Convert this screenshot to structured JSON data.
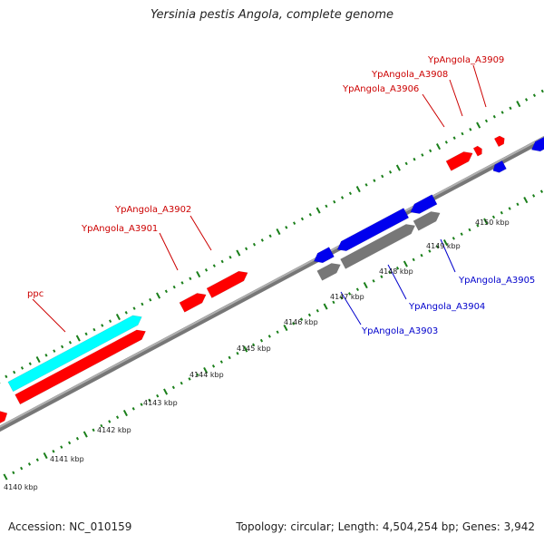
{
  "title": "Yersinia pestis Angola, complete genome",
  "footer": {
    "accession": "Accession: NC_010159",
    "stats": "Topology: circular; Length: 4,504,254 bp; Genes: 3,942"
  },
  "colors": {
    "plus_strand": "#ff0000",
    "minus_strand": "#0000ee",
    "rna": "#00ffff",
    "other": "#777777",
    "backbone": "#888888",
    "ticks": "#1a7f1a"
  },
  "tick_labels": [
    "4140 kbp",
    "4141 kbp",
    "4142 kbp",
    "4143 kbp",
    "4144 kbp",
    "4145 kbp",
    "4146 kbp",
    "4147 kbp",
    "4148 kbp",
    "4149 kbp",
    "4150 kbp"
  ],
  "gene_labels": [
    {
      "text": "ppc",
      "color": "#cc0000"
    },
    {
      "text": "YpAngola_A3901",
      "color": "#cc0000"
    },
    {
      "text": "YpAngola_A3902",
      "color": "#cc0000"
    },
    {
      "text": "YpAngola_A3903",
      "color": "#0000cc"
    },
    {
      "text": "YpAngola_A3904",
      "color": "#0000cc"
    },
    {
      "text": "YpAngola_A3905",
      "color": "#0000cc"
    },
    {
      "text": "YpAngola_A3906",
      "color": "#cc0000"
    },
    {
      "text": "YpAngola_A3908",
      "color": "#cc0000"
    },
    {
      "text": "YpAngola_A3909",
      "color": "#cc0000"
    }
  ]
}
